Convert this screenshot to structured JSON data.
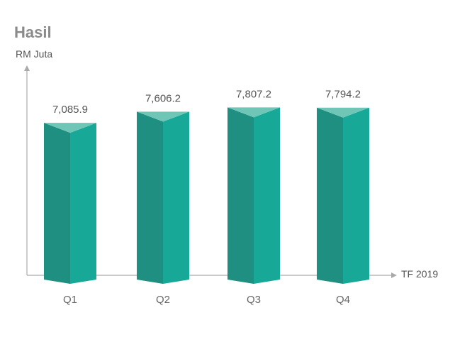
{
  "chart_data": {
    "type": "bar",
    "title": "Hasil",
    "ylabel": "RM Juta",
    "xlabel": "TF 2019",
    "categories": [
      "Q1",
      "Q2",
      "Q3",
      "Q4"
    ],
    "values": [
      7085.9,
      7606.2,
      7807.2,
      7794.2
    ],
    "value_labels": [
      "7,085.9",
      "7,606.2",
      "7,807.2",
      "7,794.2"
    ],
    "ylim": [
      0,
      9500
    ],
    "grid": false,
    "colors": {
      "bar_front_left": "#1e8f80",
      "bar_front_right": "#17a898",
      "bar_top": "#6fc6b6",
      "axis": "#aaaaaa"
    }
  }
}
